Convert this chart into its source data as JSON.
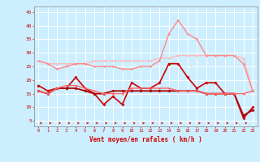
{
  "bg_color": "#cceeff",
  "grid_color": "#ffffff",
  "xlabel": "Vent moyen/en rafales ( km/h )",
  "xlabel_color": "#cc0000",
  "xtick_color": "#cc0000",
  "ytick_color": "#cc0000",
  "xlim": [
    -0.5,
    23.5
  ],
  "ylim": [
    3,
    47
  ],
  "yticks": [
    5,
    10,
    15,
    20,
    25,
    30,
    35,
    40,
    45
  ],
  "xticks": [
    0,
    1,
    2,
    3,
    4,
    5,
    6,
    7,
    8,
    9,
    10,
    11,
    12,
    13,
    14,
    15,
    16,
    17,
    18,
    19,
    20,
    21,
    22,
    23
  ],
  "lines": [
    {
      "x": [
        0,
        1,
        2,
        3,
        4,
        5,
        6,
        7,
        8,
        9,
        10,
        11,
        12,
        13,
        14,
        15,
        16,
        17,
        18,
        19,
        20,
        21,
        22,
        23
      ],
      "y": [
        27,
        26,
        26,
        26,
        26,
        26,
        27,
        27,
        27,
        27,
        27,
        27,
        27,
        28,
        28,
        29,
        29,
        29,
        29,
        29,
        29,
        29,
        28,
        16
      ],
      "color": "#ffbbbb",
      "lw": 1.0,
      "marker": "D",
      "ms": 1.5
    },
    {
      "x": [
        0,
        1,
        2,
        3,
        4,
        5,
        6,
        7,
        8,
        9,
        10,
        11,
        12,
        13,
        14,
        15,
        16,
        17,
        18,
        19,
        20,
        21,
        22,
        23
      ],
      "y": [
        27,
        26,
        24,
        25,
        26,
        26,
        25,
        25,
        25,
        24,
        24,
        25,
        25,
        27,
        37,
        42,
        37,
        35,
        29,
        29,
        29,
        29,
        26,
        16
      ],
      "color": "#ff8888",
      "lw": 1.0,
      "marker": "D",
      "ms": 1.5
    },
    {
      "x": [
        0,
        1,
        2,
        3,
        4,
        5,
        6,
        7,
        8,
        9,
        10,
        11,
        12,
        13,
        14,
        15,
        16,
        17,
        18,
        19,
        20,
        21,
        22,
        23
      ],
      "y": [
        18,
        16,
        17,
        17,
        21,
        17,
        15,
        11,
        14,
        11,
        19,
        17,
        17,
        19,
        26,
        26,
        21,
        17,
        19,
        19,
        15,
        15,
        6,
        10
      ],
      "color": "#cc0000",
      "lw": 1.2,
      "marker": "D",
      "ms": 2.0
    },
    {
      "x": [
        0,
        1,
        2,
        3,
        4,
        5,
        6,
        7,
        8,
        9,
        10,
        11,
        12,
        13,
        14,
        15,
        16,
        17,
        18,
        19,
        20,
        21,
        22,
        23
      ],
      "y": [
        16,
        15,
        17,
        17,
        17,
        16,
        15,
        15,
        16,
        16,
        16,
        16,
        16,
        16,
        16,
        16,
        16,
        16,
        15,
        15,
        15,
        15,
        7,
        9
      ],
      "color": "#aa0000",
      "lw": 1.3,
      "marker": "D",
      "ms": 2.0
    },
    {
      "x": [
        0,
        1,
        2,
        3,
        4,
        5,
        6,
        7,
        8,
        9,
        10,
        11,
        12,
        13,
        14,
        15,
        16,
        17,
        18,
        19,
        20,
        21,
        22,
        23
      ],
      "y": [
        16,
        15,
        17,
        18,
        18,
        17,
        16,
        15,
        15,
        15,
        17,
        17,
        17,
        17,
        17,
        16,
        16,
        16,
        15,
        15,
        15,
        15,
        15,
        16
      ],
      "color": "#ff6666",
      "lw": 1.0,
      "marker": "D",
      "ms": 1.5
    }
  ]
}
